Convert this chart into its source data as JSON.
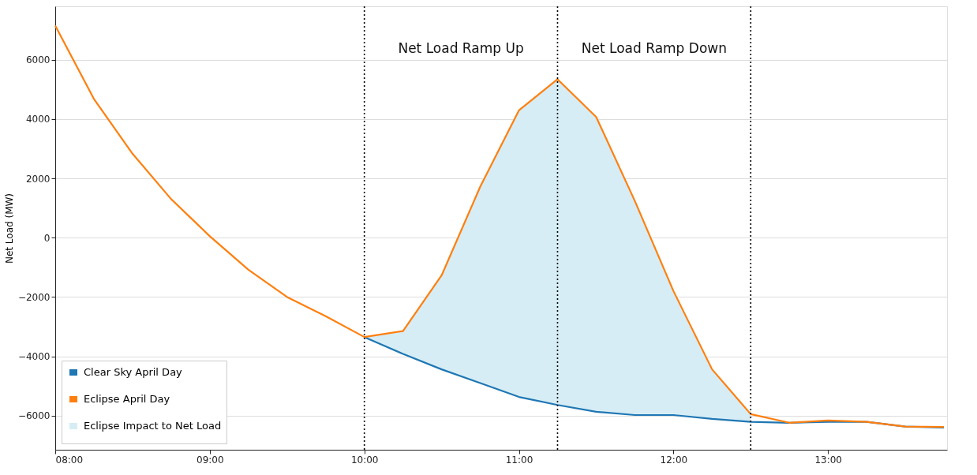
{
  "chart_data": {
    "type": "line",
    "ylabel": "Net Load (MW)",
    "x": [
      8,
      8.25,
      8.5,
      8.75,
      9,
      9.25,
      9.5,
      9.75,
      10,
      10.25,
      10.5,
      10.75,
      11,
      11.25,
      11.5,
      11.75,
      12,
      12.25,
      12.5,
      12.75,
      13,
      13.25,
      13.5,
      13.75
    ],
    "series": [
      {
        "name": "Clear Sky April Day",
        "color": "#1f77b4",
        "x": [
          10,
          10.25,
          10.5,
          10.75,
          11,
          11.25,
          11.5,
          11.75,
          12,
          12.25,
          12.5,
          12.75,
          13,
          13.25,
          13.5,
          13.75
        ],
        "values": [
          -3350,
          -3920,
          -4440,
          -4900,
          -5370,
          -5640,
          -5870,
          -5980,
          -5980,
          -6110,
          -6210,
          -6240,
          -6210,
          -6210,
          -6370,
          -6400
        ]
      },
      {
        "name": "Eclipse April Day",
        "color": "#ff7f0e",
        "values": [
          7150,
          4680,
          2830,
          1300,
          50,
          -1080,
          -2000,
          -2650,
          -3350,
          -3150,
          -1270,
          1720,
          4290,
          5340,
          4070,
          1240,
          -1800,
          -4440,
          -5950,
          -6240,
          -6160,
          -6210,
          -6370,
          -6380
        ]
      },
      {
        "name": "Eclipse Impact to Net Load",
        "type": "area",
        "color": "#d6edf5",
        "x": [
          10,
          10.25,
          10.5,
          10.75,
          11,
          11.25,
          11.5,
          11.75,
          12,
          12.25,
          12.5
        ],
        "lower": [
          -3350,
          -3920,
          -4440,
          -4900,
          -5370,
          -5640,
          -5870,
          -5980,
          -5980,
          -6110,
          -6210
        ],
        "values": [
          null,
          null,
          null,
          null,
          null,
          null,
          null,
          null,
          null,
          null,
          null
        ],
        "upper": [
          -3350,
          -3150,
          -1270,
          1720,
          4290,
          5340,
          4070,
          1240,
          -1800,
          -4440,
          -5950
        ]
      }
    ],
    "xlim": [
      8,
      13.77
    ],
    "xticks": [
      {
        "value": 8,
        "label": "08:00"
      },
      {
        "value": 9,
        "label": "09:00"
      },
      {
        "value": 10,
        "label": "10:00"
      },
      {
        "value": 11,
        "label": "11:00"
      },
      {
        "value": 12,
        "label": "12:00"
      },
      {
        "value": 13,
        "label": "13:00"
      }
    ],
    "ylim": [
      -7150,
      7800
    ],
    "yticks": [
      {
        "value": -6000,
        "label": "−6000"
      },
      {
        "value": -4000,
        "label": "−4000"
      },
      {
        "value": -2000,
        "label": "−2000"
      },
      0,
      2000,
      4000,
      6000
    ],
    "ref_lines": [
      {
        "axis": "x",
        "value": 10,
        "color": "#000000",
        "line_style": "dotted"
      },
      {
        "axis": "x",
        "value": 11.25,
        "color": "#000000",
        "line_style": "dotted"
      },
      {
        "axis": "x",
        "value": 12.5,
        "color": "#000000",
        "line_style": "dotted"
      }
    ],
    "annotations": [
      "Net Load Ramp Up",
      "Net Load Ramp Down"
    ],
    "grid": "y",
    "legend": "bottom left",
    "line_style": "solid",
    "marker": "none"
  }
}
